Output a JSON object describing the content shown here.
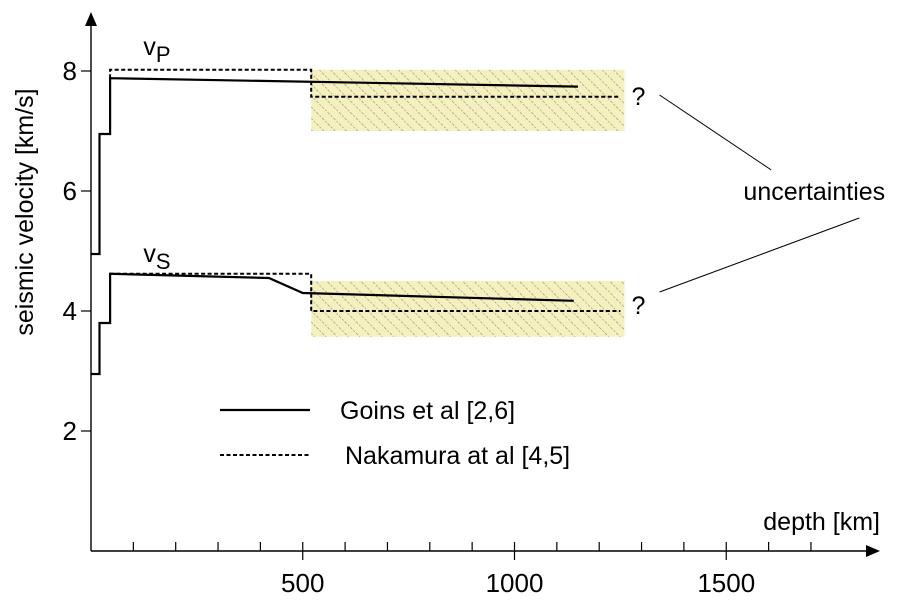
{
  "chart_data": {
    "type": "line",
    "title": "",
    "xlabel": "depth [km]",
    "ylabel": "seismic velocity [km/s]",
    "xlim": [
      0,
      1800
    ],
    "ylim": [
      0,
      9.1
    ],
    "x_major_ticks": [
      500,
      1000,
      1500
    ],
    "x_minor_ticks": [
      100,
      200,
      300,
      400,
      600,
      700,
      800,
      900,
      1100,
      1200,
      1300,
      1400,
      1600,
      1700
    ],
    "x_tick_labels": [
      "500",
      "1000",
      "1500"
    ],
    "y_ticks": [
      2,
      4,
      6,
      8
    ],
    "y_tick_labels": [
      "2",
      "4",
      "6",
      "8"
    ],
    "grid": false,
    "legend_position": "center",
    "series": [
      {
        "name": "Goins et al [2,6]",
        "style": "solid",
        "segments": [
          {
            "label": "v_P",
            "x": [
              0,
              20,
              20,
              45,
              45,
              1150
            ],
            "y": [
              4.95,
              4.95,
              6.95,
              6.95,
              7.88,
              7.74
            ]
          },
          {
            "label": "v_S",
            "x": [
              0,
              20,
              20,
              45,
              45,
              420,
              500,
              1140
            ],
            "y": [
              2.95,
              2.95,
              3.8,
              3.8,
              4.62,
              4.55,
              4.3,
              4.17
            ]
          }
        ]
      },
      {
        "name": "Nakamura at al [4,5]",
        "style": "dashed",
        "segments": [
          {
            "label": "v_P",
            "x": [
              45,
              45,
              520,
              520,
              1250
            ],
            "y": [
              7.88,
              8.02,
              8.02,
              7.57,
              7.57
            ]
          },
          {
            "label": "v_S",
            "x": [
              45,
              45,
              520,
              520,
              1250
            ],
            "y": [
              4.62,
              4.62,
              4.62,
              4.0,
              4.0
            ]
          }
        ]
      }
    ],
    "uncertainty_bands": [
      {
        "x": [
          520,
          1260
        ],
        "y": [
          7.0,
          8.02
        ],
        "fill": "#f5f0c0",
        "hatch": "#8f8f6a"
      },
      {
        "x": [
          520,
          1260
        ],
        "y": [
          3.57,
          4.5
        ],
        "fill": "#f5f0c0",
        "hatch": "#8f8f6a"
      }
    ],
    "annotations": {
      "vp_label": {
        "main": "v",
        "sub": "P",
        "x": 230,
        "y": 8.1
      },
      "vs_label": {
        "main": "v",
        "sub": "S",
        "x": 230,
        "y": 4.9
      },
      "question_top": {
        "text": "?",
        "x": 1300,
        "y": 7.5
      },
      "question_bottom": {
        "text": "?",
        "x": 1300,
        "y": 3.95
      },
      "uncertainties": {
        "text": "uncertainties",
        "x": 1460,
        "y": 5.85
      }
    },
    "legend": [
      {
        "label": "Goins et al [2,6]",
        "style": "solid"
      },
      {
        "label": "Nakamura at al [4,5]",
        "style": "dashed"
      }
    ]
  }
}
